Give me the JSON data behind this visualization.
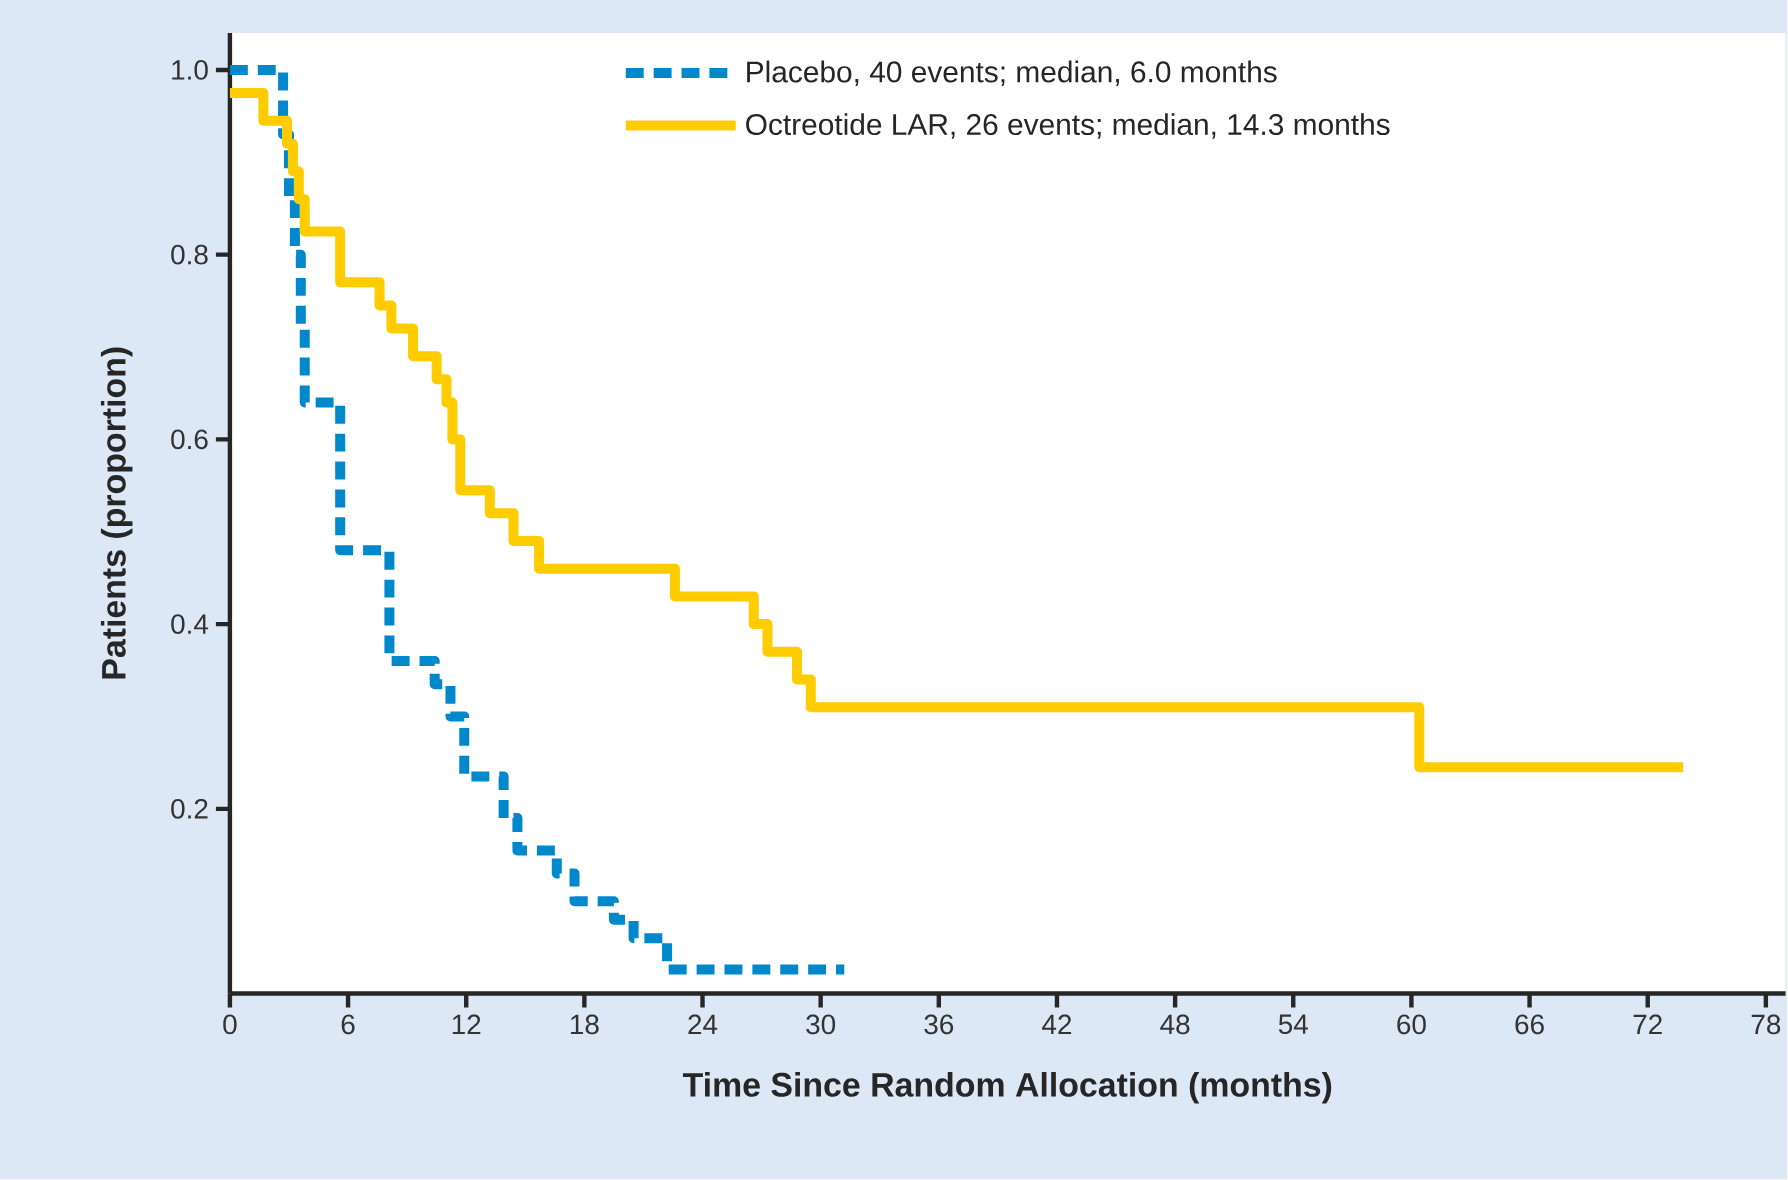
{
  "chart_data": {
    "type": "step",
    "xlabel": "Time Since Random Allocation (months)",
    "ylabel": "Patients (proportion)",
    "xlim": [
      0,
      79
    ],
    "ylim": [
      0,
      1.04
    ],
    "xticks": [
      0,
      6,
      12,
      18,
      24,
      30,
      36,
      42,
      48,
      54,
      60,
      66,
      72,
      78
    ],
    "yticks": [
      {
        "value": 0.2,
        "label": "0.2"
      },
      {
        "value": 0.4,
        "label": "0.4"
      },
      {
        "value": 0.6,
        "label": "0.6"
      },
      {
        "value": 0.8,
        "label": "0.8"
      },
      {
        "value": 1.0,
        "label": "1.0"
      }
    ],
    "legend": "top",
    "grid": false,
    "series": [
      {
        "name": "Placebo, 40 events; median, 6.0 months",
        "color": "#0088cc",
        "line_style": "dashed",
        "x": [
          0,
          2.7,
          3.0,
          3.3,
          3.6,
          3.8,
          5.6,
          8.1,
          10.4,
          11.2,
          11.9,
          13.9,
          14.6,
          16.6,
          17.5,
          19.5,
          20.5,
          22.2,
          31.2
        ],
        "values": [
          1.0,
          0.93,
          0.86,
          0.8,
          0.72,
          0.64,
          0.48,
          0.36,
          0.335,
          0.3,
          0.235,
          0.19,
          0.155,
          0.13,
          0.1,
          0.08,
          0.06,
          0.026,
          0.026
        ]
      },
      {
        "name": "Octreotide LAR, 26 events; median, 14.3 months",
        "color": "#ffcc00",
        "line_style": "solid",
        "x": [
          0,
          1.7,
          2.9,
          3.2,
          3.5,
          3.8,
          5.6,
          7.6,
          8.2,
          9.3,
          10.5,
          11.0,
          11.3,
          11.7,
          13.2,
          14.4,
          15.7,
          22.6,
          26.6,
          27.3,
          28.8,
          29.5,
          60.4,
          73.8
        ],
        "values": [
          0.975,
          0.945,
          0.92,
          0.89,
          0.86,
          0.825,
          0.77,
          0.745,
          0.72,
          0.69,
          0.665,
          0.64,
          0.6,
          0.545,
          0.52,
          0.49,
          0.46,
          0.43,
          0.4,
          0.37,
          0.34,
          0.31,
          0.245,
          0.245
        ]
      }
    ]
  }
}
